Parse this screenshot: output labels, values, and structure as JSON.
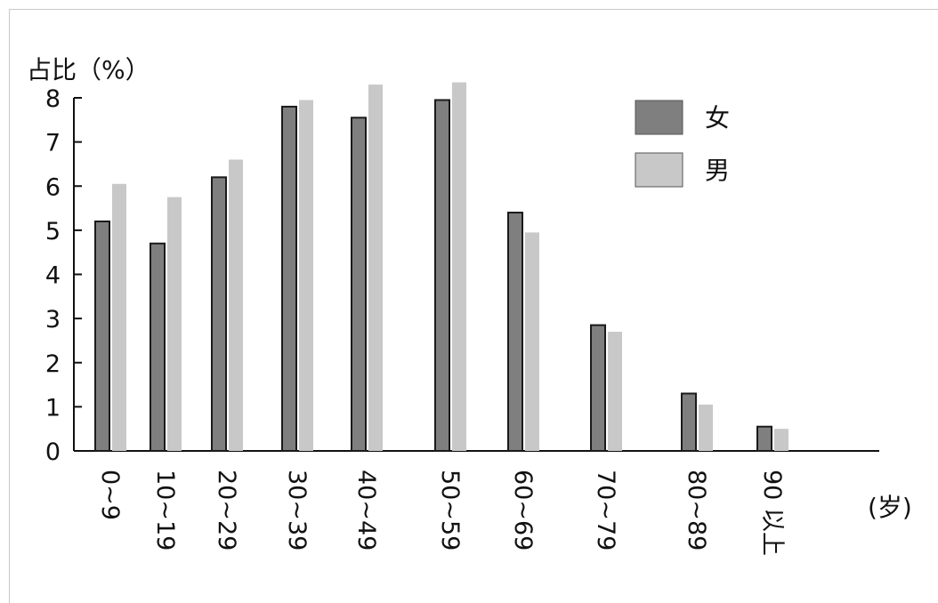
{
  "chart_data": {
    "type": "bar",
    "ylabel": "占比（%）",
    "xlabel": "(岁)",
    "ylim": [
      0,
      8
    ],
    "yticks": [
      0,
      1,
      2,
      3,
      4,
      5,
      6,
      7,
      8
    ],
    "grid": false,
    "legend_position": "top-right",
    "categories": [
      "0~9",
      "10~19",
      "20~29",
      "30~39",
      "40~49",
      "50~59",
      "60~69",
      "70~79",
      "80~89",
      "90 以上"
    ],
    "series": [
      {
        "name": "女",
        "color": "#7f7f7f",
        "values": [
          5.2,
          4.7,
          6.2,
          7.8,
          7.55,
          7.95,
          5.4,
          2.85,
          1.3,
          0.55
        ]
      },
      {
        "name": "男",
        "color": "#c8c8c8",
        "values": [
          6.05,
          5.75,
          6.6,
          7.95,
          8.3,
          8.35,
          4.95,
          2.7,
          1.05,
          0.5
        ]
      }
    ]
  }
}
